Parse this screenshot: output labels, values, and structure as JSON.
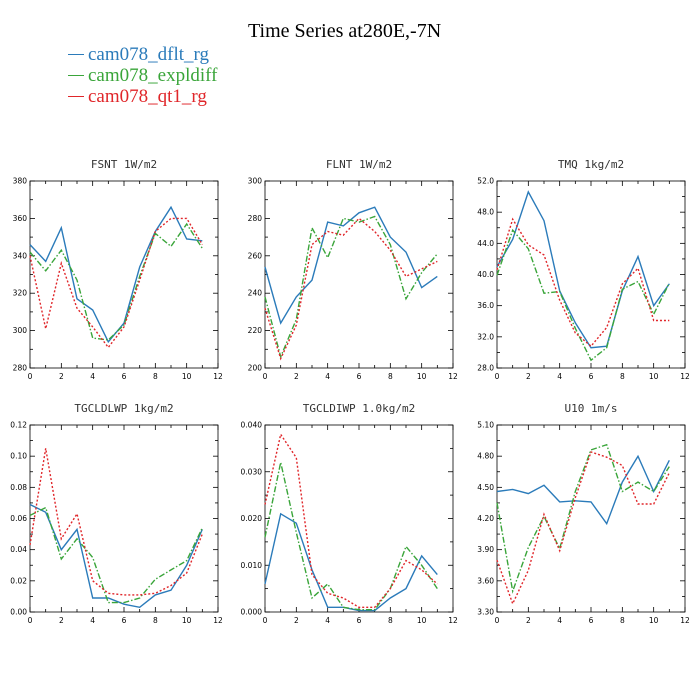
{
  "title": "Time Series at280E,-7N",
  "legend": [
    {
      "label": "cam078_dflt_rg",
      "color": "#2b7bba"
    },
    {
      "label": "cam078_expldiff",
      "color": "#3aa53a"
    },
    {
      "label": "cam078_qt1_rg",
      "color": "#e0262a"
    }
  ],
  "chart_data": [
    {
      "type": "line",
      "title": "FSNT   1W/m2",
      "x": [
        0,
        1,
        2,
        3,
        4,
        5,
        6,
        7,
        8,
        9,
        10,
        11
      ],
      "xlim": [
        0,
        12
      ],
      "xticks": [
        "0",
        "2",
        "4",
        "6",
        "8",
        "10",
        "12"
      ],
      "ylim": [
        280,
        380
      ],
      "yticks": [
        "280",
        "300",
        "320",
        "340",
        "360",
        "380"
      ],
      "series": [
        {
          "name": "cam078_dflt_rg",
          "values": [
            346,
            337,
            355,
            317,
            311,
            294,
            304,
            334,
            353,
            366,
            349,
            348
          ]
        },
        {
          "name": "cam078_expldiff",
          "values": [
            342,
            332,
            343,
            327,
            296,
            295,
            303,
            329,
            352,
            345,
            357,
            344
          ]
        },
        {
          "name": "cam078_qt1_rg",
          "values": [
            340,
            301,
            336,
            312,
            302,
            291,
            302,
            327,
            353,
            360,
            360,
            346
          ]
        }
      ]
    },
    {
      "type": "line",
      "title": "FLNT   1W/m2",
      "x": [
        0,
        1,
        2,
        3,
        4,
        5,
        6,
        7,
        8,
        9,
        10,
        11
      ],
      "xlim": [
        0,
        12
      ],
      "xticks": [
        "0",
        "2",
        "4",
        "6",
        "8",
        "10",
        "12"
      ],
      "ylim": [
        200,
        300
      ],
      "yticks": [
        "200",
        "220",
        "240",
        "260",
        "280",
        "300"
      ],
      "series": [
        {
          "name": "cam078_dflt_rg",
          "values": [
            254,
            224,
            238,
            247,
            278,
            276,
            283,
            286,
            270,
            262,
            243,
            249
          ]
        },
        {
          "name": "cam078_expldiff",
          "values": [
            238,
            206,
            226,
            275,
            259,
            280,
            278,
            281,
            266,
            237,
            251,
            261
          ]
        },
        {
          "name": "cam078_qt1_rg",
          "values": [
            232,
            205,
            223,
            266,
            273,
            271,
            280,
            273,
            263,
            249,
            253,
            257
          ]
        }
      ]
    },
    {
      "type": "line",
      "title": "TMQ   1kg/m2",
      "x": [
        0,
        1,
        2,
        3,
        4,
        5,
        6,
        7,
        8,
        9,
        10,
        11
      ],
      "xlim": [
        0,
        12
      ],
      "xticks": [
        "0",
        "2",
        "4",
        "6",
        "8",
        "10",
        "12"
      ],
      "ylim": [
        28.0,
        52.0
      ],
      "yticks": [
        "28.0",
        "32.0",
        "36.0",
        "40.0",
        "44.0",
        "48.0",
        "52.0"
      ],
      "series": [
        {
          "name": "cam078_dflt_rg",
          "values": [
            41.0,
            44.5,
            50.6,
            46.9,
            37.9,
            33.8,
            30.6,
            30.8,
            37.9,
            42.3,
            36.0,
            38.8
          ]
        },
        {
          "name": "cam078_expldiff",
          "values": [
            39.9,
            45.7,
            43.3,
            37.6,
            37.8,
            33.1,
            29.0,
            30.6,
            38.1,
            39.1,
            34.9,
            38.9
          ]
        },
        {
          "name": "cam078_qt1_rg",
          "values": [
            40.6,
            47.1,
            43.8,
            42.5,
            36.7,
            32.5,
            30.8,
            33.2,
            38.8,
            40.8,
            34.1,
            34.1
          ]
        }
      ]
    },
    {
      "type": "line",
      "title": "TGCLDLWP   1kg/m2",
      "x": [
        0,
        1,
        2,
        3,
        4,
        5,
        6,
        7,
        8,
        9,
        10,
        11
      ],
      "xlim": [
        0,
        12
      ],
      "xticks": [
        "0",
        "2",
        "4",
        "6",
        "8",
        "10",
        "12"
      ],
      "ylim": [
        0.0,
        0.12
      ],
      "yticks": [
        "0.00",
        "0.02",
        "0.04",
        "0.06",
        "0.08",
        "0.10",
        "0.12"
      ],
      "series": [
        {
          "name": "cam078_dflt_rg",
          "values": [
            0.069,
            0.064,
            0.04,
            0.053,
            0.009,
            0.009,
            0.005,
            0.003,
            0.011,
            0.014,
            0.03,
            0.053
          ]
        },
        {
          "name": "cam078_expldiff",
          "values": [
            0.062,
            0.067,
            0.034,
            0.047,
            0.035,
            0.006,
            0.006,
            0.009,
            0.021,
            0.027,
            0.033,
            0.054
          ]
        },
        {
          "name": "cam078_qt1_rg",
          "values": [
            0.043,
            0.105,
            0.047,
            0.063,
            0.02,
            0.012,
            0.011,
            0.011,
            0.012,
            0.017,
            0.025,
            0.05
          ]
        }
      ]
    },
    {
      "type": "line",
      "title": "TGCLDIWP   1.0kg/m2",
      "x": [
        0,
        1,
        2,
        3,
        4,
        5,
        6,
        7,
        8,
        9,
        10,
        11
      ],
      "xlim": [
        0,
        12
      ],
      "xticks": [
        "0",
        "2",
        "4",
        "6",
        "8",
        "10",
        "12"
      ],
      "ylim": [
        0.0,
        0.04
      ],
      "yticks": [
        "0.000",
        "0.010",
        "0.020",
        "0.030",
        "0.040"
      ],
      "series": [
        {
          "name": "cam078_dflt_rg",
          "values": [
            0.006,
            0.021,
            0.019,
            0.009,
            0.001,
            0.001,
            0.0003,
            0.0003,
            0.003,
            0.005,
            0.012,
            0.008
          ]
        },
        {
          "name": "cam078_expldiff",
          "values": [
            0.016,
            0.032,
            0.017,
            0.003,
            0.006,
            0.001,
            0.0005,
            0.0005,
            0.005,
            0.014,
            0.01,
            0.005
          ]
        },
        {
          "name": "cam078_qt1_rg",
          "values": [
            0.023,
            0.038,
            0.033,
            0.008,
            0.004,
            0.003,
            0.001,
            0.001,
            0.005,
            0.011,
            0.009,
            0.006
          ]
        }
      ]
    },
    {
      "type": "line",
      "title": "U10   1m/s",
      "x": [
        0,
        1,
        2,
        3,
        4,
        5,
        6,
        7,
        8,
        9,
        10,
        11
      ],
      "xlim": [
        0,
        12
      ],
      "xticks": [
        "0",
        "2",
        "4",
        "6",
        "8",
        "10",
        "12"
      ],
      "ylim": [
        3.3,
        5.1
      ],
      "yticks": [
        "3.30",
        "3.60",
        "3.90",
        "4.20",
        "4.50",
        "4.80",
        "5.10"
      ],
      "series": [
        {
          "name": "cam078_dflt_rg",
          "values": [
            4.46,
            4.48,
            4.44,
            4.52,
            4.36,
            4.37,
            4.36,
            4.15,
            4.55,
            4.8,
            4.46,
            4.76
          ]
        },
        {
          "name": "cam078_expldiff",
          "values": [
            4.35,
            3.5,
            3.92,
            4.22,
            3.91,
            4.46,
            4.86,
            4.91,
            4.46,
            4.55,
            4.46,
            4.7
          ]
        },
        {
          "name": "cam078_qt1_rg",
          "values": [
            3.8,
            3.38,
            3.7,
            4.24,
            3.89,
            4.4,
            4.84,
            4.79,
            4.71,
            4.34,
            4.34,
            4.64
          ]
        }
      ]
    }
  ]
}
